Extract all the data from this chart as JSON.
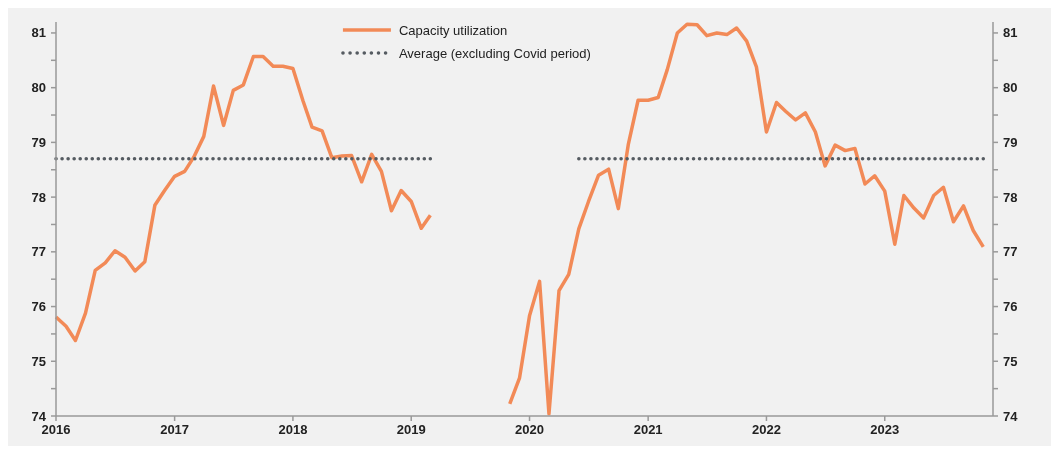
{
  "chart_data": {
    "type": "line",
    "legend": "top",
    "grid": false,
    "x": [
      "2016-01",
      "2016-02",
      "2016-03",
      "2016-04",
      "2016-05",
      "2016-06",
      "2016-07",
      "2016-08",
      "2016-09",
      "2016-10",
      "2016-11",
      "2016-12",
      "2017-01",
      "2017-02",
      "2017-03",
      "2017-04",
      "2017-05",
      "2017-06",
      "2017-07",
      "2017-08",
      "2017-09",
      "2017-10",
      "2017-11",
      "2017-12",
      "2018-01",
      "2018-02",
      "2018-03",
      "2018-04",
      "2018-05",
      "2018-06",
      "2018-07",
      "2018-08",
      "2018-09",
      "2018-10",
      "2018-11",
      "2018-12",
      "2019-01",
      "2019-02",
      "2019-03",
      "2019-04",
      "2019-05",
      "2019-06",
      "2019-07",
      "2019-08",
      "2019-09",
      "2019-10",
      "2019-11",
      "2019-12",
      "2020-01",
      "2020-02",
      "2020-03",
      "2020-04",
      "2020-05",
      "2020-06",
      "2020-07",
      "2020-08",
      "2020-09",
      "2020-10",
      "2020-11",
      "2020-12",
      "2021-01",
      "2021-02",
      "2021-03",
      "2021-04",
      "2021-05",
      "2021-06",
      "2021-07",
      "2021-08",
      "2021-09",
      "2021-10",
      "2021-11",
      "2021-12",
      "2022-01",
      "2022-02",
      "2022-03",
      "2022-04",
      "2022-05",
      "2022-06",
      "2022-07",
      "2022-08",
      "2022-09",
      "2022-10",
      "2022-11",
      "2022-12",
      "2023-01",
      "2023-02",
      "2023-03",
      "2023-04",
      "2023-05",
      "2023-06",
      "2023-07",
      "2023-08",
      "2023-09",
      "2023-10",
      "2023-11"
    ],
    "series": [
      {
        "name": "Capacity utilization",
        "color": "#f28a57",
        "line_style": "solid",
        "values": [
          75.81,
          75.64,
          75.38,
          75.88,
          76.66,
          76.8,
          77.02,
          76.9,
          76.65,
          76.82,
          77.85,
          78.12,
          78.38,
          78.47,
          78.73,
          79.11,
          80.03,
          79.31,
          79.95,
          80.05,
          80.57,
          80.57,
          80.39,
          80.39,
          80.35,
          79.76,
          79.28,
          79.21,
          78.72,
          78.75,
          78.76,
          78.28,
          78.78,
          78.47,
          77.75,
          78.12,
          77.92,
          77.43,
          77.67,
          null,
          null,
          null,
          null,
          null,
          null,
          null,
          74.22,
          74.69,
          75.83,
          76.46,
          74.04,
          76.29,
          76.59,
          77.42,
          77.92,
          78.4,
          78.51,
          77.79,
          78.97,
          79.77,
          79.77,
          79.82,
          80.33,
          81.0,
          81.16,
          81.15,
          80.95,
          81.0,
          80.97,
          81.09,
          80.85,
          80.38,
          79.19,
          79.73,
          79.57,
          79.41,
          79.54,
          79.19,
          78.57,
          78.95,
          78.85,
          78.89,
          78.24,
          78.39,
          78.11,
          77.14,
          78.03,
          77.8,
          77.62,
          78.03,
          78.18,
          77.55,
          77.84,
          77.39,
          77.09
        ]
      },
      {
        "name": "Average (excluding Covid period)",
        "color": "#555b61",
        "line_style": "dotted",
        "values": [
          78.7,
          78.7,
          78.7,
          78.7,
          78.7,
          78.7,
          78.7,
          78.7,
          78.7,
          78.7,
          78.7,
          78.7,
          78.7,
          78.7,
          78.7,
          78.7,
          78.7,
          78.7,
          78.7,
          78.7,
          78.7,
          78.7,
          78.7,
          78.7,
          78.7,
          78.7,
          78.7,
          78.7,
          78.7,
          78.7,
          78.7,
          78.7,
          78.7,
          78.7,
          78.7,
          78.7,
          78.7,
          78.7,
          78.7,
          null,
          null,
          null,
          null,
          null,
          null,
          null,
          null,
          null,
          null,
          null,
          null,
          null,
          null,
          78.7,
          78.7,
          78.7,
          78.7,
          78.7,
          78.7,
          78.7,
          78.7,
          78.7,
          78.7,
          78.7,
          78.7,
          78.7,
          78.7,
          78.7,
          78.7,
          78.7,
          78.7,
          78.7,
          78.7,
          78.7,
          78.7,
          78.7,
          78.7,
          78.7,
          78.7,
          78.7,
          78.7,
          78.7,
          78.7,
          78.7,
          78.7,
          78.7,
          78.7,
          78.7,
          78.7,
          78.7,
          78.7,
          78.7,
          78.7,
          78.7,
          78.7
        ]
      }
    ],
    "xlim": [
      "2016-01",
      "2023-12"
    ],
    "xticks": [
      "2016",
      "2017",
      "2018",
      "2019",
      "2020",
      "2021",
      "2022",
      "2023"
    ],
    "ylim": [
      74,
      81.2
    ],
    "yticks": [
      74,
      {
        "value": 74.5,
        "label": null
      },
      75,
      {
        "value": 75.5,
        "label": null
      },
      76,
      {
        "value": 76.5,
        "label": null
      },
      77,
      {
        "value": 77.5,
        "label": null
      },
      78,
      {
        "value": 78.5,
        "label": null
      },
      79,
      {
        "value": 79.5,
        "label": null
      },
      80,
      {
        "value": 80.5,
        "label": null
      },
      81
    ],
    "y2lim": [
      74,
      81.2
    ],
    "y2ticks": [
      74,
      {
        "value": 74.5,
        "label": null
      },
      75,
      {
        "value": 75.5,
        "label": null
      },
      76,
      {
        "value": 76.5,
        "label": null
      },
      77,
      {
        "value": 77.5,
        "label": null
      },
      78,
      {
        "value": 78.5,
        "label": null
      },
      79,
      {
        "value": 79.5,
        "label": null
      },
      80,
      {
        "value": 80.5,
        "label": null
      },
      81
    ]
  }
}
